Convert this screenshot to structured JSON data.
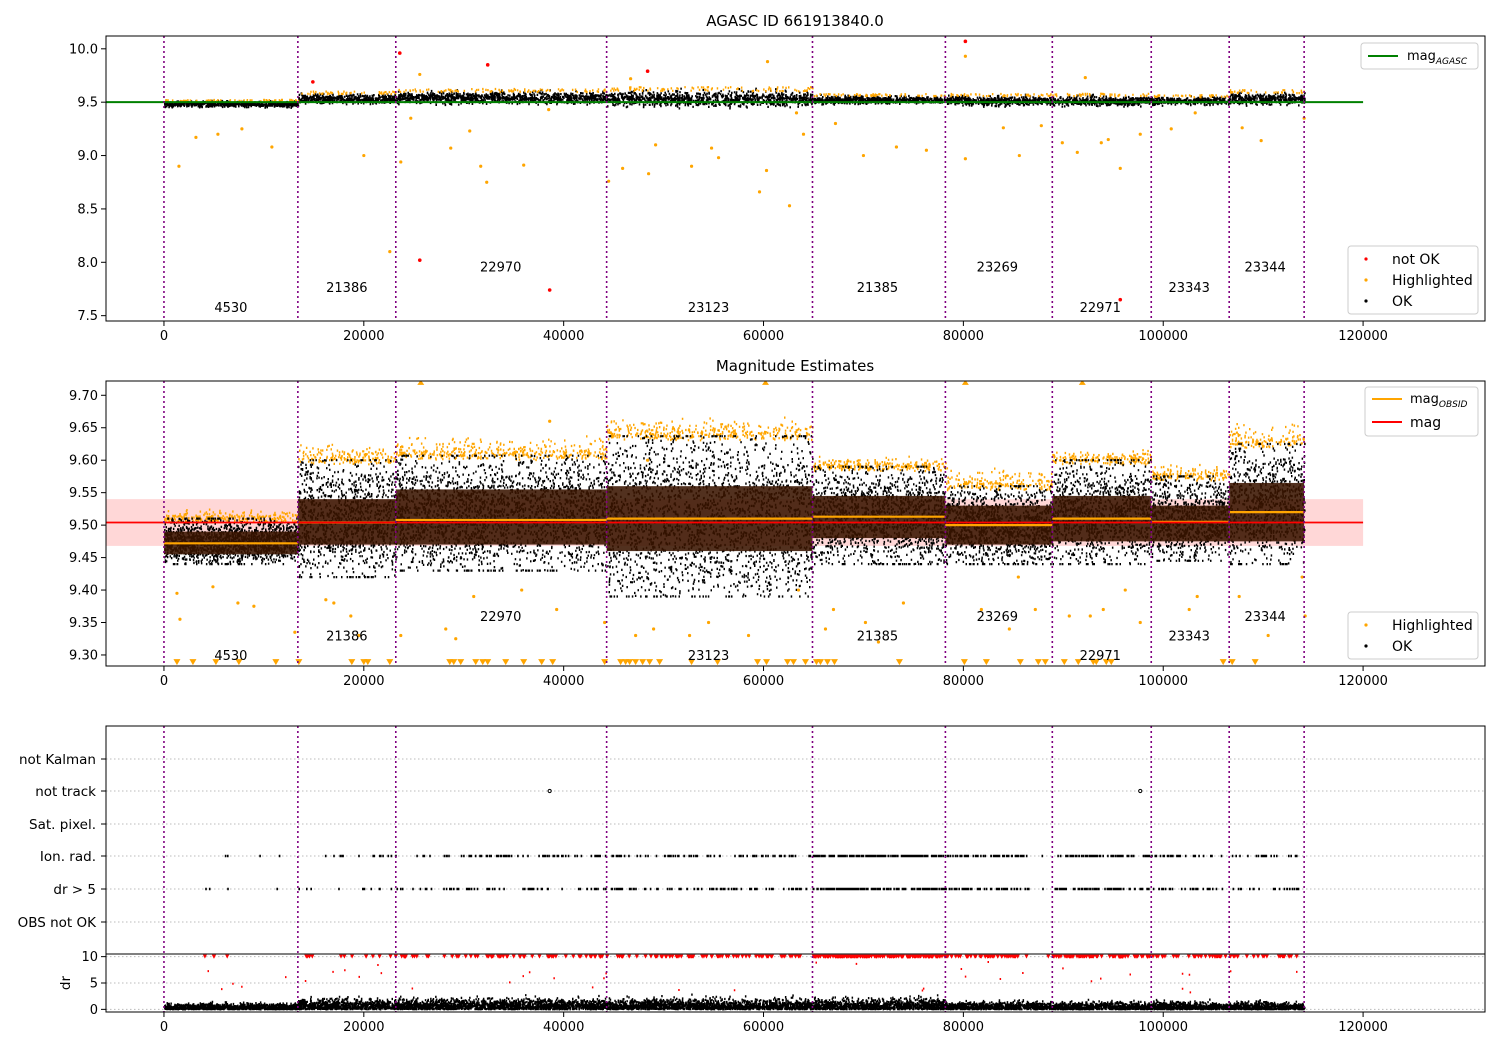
{
  "figure": {
    "title_top": "AGASC ID 661913840.0",
    "title_mid": "Magnitude Estimates"
  },
  "colors": {
    "obs_line": "#800080",
    "ok": "#000000",
    "highlighted": "#ffa500",
    "not_ok": "#ff0000",
    "mag_agasc": "#008000",
    "mag_obsid": "#ffa500",
    "mag": "#ff0000",
    "mag_band": "#ffb6b6",
    "box": "#3a1500"
  },
  "chart_data": [
    {
      "type": "scatter",
      "title": "AGASC ID 661913840.0",
      "xlim": [
        -5800,
        132200
      ],
      "ylim": [
        7.45,
        10.12
      ],
      "x_ticks": [
        0,
        20000,
        40000,
        60000,
        80000,
        100000,
        120000
      ],
      "y_ticks": [
        7.5,
        8.0,
        8.5,
        9.0,
        9.5,
        10.0
      ],
      "tick_labels_x": [
        "0",
        "20000",
        "40000",
        "60000",
        "80000",
        "100000",
        "120000"
      ],
      "tick_labels_y": [
        "7.5",
        "8.0",
        "8.5",
        "9.0",
        "9.5",
        "10.0"
      ],
      "obsid_boundaries": [
        0,
        13400,
        23200,
        44300,
        64900,
        78200,
        88900,
        98800,
        106600,
        114100
      ],
      "obsid_labels": [
        {
          "text": "4530",
          "x": 6700,
          "y": 7.58
        },
        {
          "text": "21386",
          "x": 18300,
          "y": 7.77
        },
        {
          "text": "22970",
          "x": 33700,
          "y": 7.96
        },
        {
          "text": "23123",
          "x": 54500,
          "y": 7.58
        },
        {
          "text": "21385",
          "x": 71400,
          "y": 7.77
        },
        {
          "text": "23269",
          "x": 83400,
          "y": 7.96
        },
        {
          "text": "22971",
          "x": 93700,
          "y": 7.58
        },
        {
          "text": "23343",
          "x": 102600,
          "y": 7.77
        },
        {
          "text": "23344",
          "x": 110200,
          "y": 7.96
        }
      ],
      "mag_agasc": {
        "name": "mag_AGASC",
        "value": 9.5,
        "x_range": [
          -5800,
          120000
        ]
      },
      "segments": [
        {
          "x0": 0,
          "x1": 13400,
          "mean": 9.48,
          "spread": 0.03
        },
        {
          "x0": 13400,
          "x1": 23200,
          "mean": 9.53,
          "spread": 0.05
        },
        {
          "x0": 23200,
          "x1": 44300,
          "mean": 9.54,
          "spread": 0.06
        },
        {
          "x0": 44300,
          "x1": 64900,
          "mean": 9.53,
          "spread": 0.08
        },
        {
          "x0": 64900,
          "x1": 78200,
          "mean": 9.52,
          "spread": 0.04
        },
        {
          "x0": 78200,
          "x1": 88900,
          "mean": 9.51,
          "spread": 0.05
        },
        {
          "x0": 88900,
          "x1": 98800,
          "mean": 9.51,
          "spread": 0.05
        },
        {
          "x0": 98800,
          "x1": 106600,
          "mean": 9.51,
          "spread": 0.04
        },
        {
          "x0": 106600,
          "x1": 114100,
          "mean": 9.53,
          "spread": 0.06
        }
      ],
      "not_ok_points": [
        [
          14900,
          9.69
        ],
        [
          23600,
          9.96
        ],
        [
          25600,
          8.02
        ],
        [
          32400,
          9.85
        ],
        [
          38600,
          7.74
        ],
        [
          48400,
          9.79
        ],
        [
          80200,
          10.07
        ],
        [
          95700,
          7.65
        ]
      ],
      "highlighted_points": [
        [
          1500,
          8.9
        ],
        [
          3200,
          9.17
        ],
        [
          5400,
          9.2
        ],
        [
          7800,
          9.25
        ],
        [
          10800,
          9.08
        ],
        [
          20000,
          9.0
        ],
        [
          22600,
          8.1
        ],
        [
          23700,
          8.94
        ],
        [
          24700,
          9.35
        ],
        [
          25600,
          9.76
        ],
        [
          28700,
          9.07
        ],
        [
          30600,
          9.23
        ],
        [
          31700,
          8.9
        ],
        [
          32300,
          8.75
        ],
        [
          36000,
          8.91
        ],
        [
          38500,
          9.43
        ],
        [
          44500,
          8.76
        ],
        [
          45900,
          8.88
        ],
        [
          46700,
          9.72
        ],
        [
          48500,
          8.83
        ],
        [
          49200,
          9.1
        ],
        [
          52800,
          8.9
        ],
        [
          54800,
          9.07
        ],
        [
          55500,
          8.98
        ],
        [
          59600,
          8.66
        ],
        [
          60300,
          8.86
        ],
        [
          60400,
          9.88
        ],
        [
          62600,
          8.53
        ],
        [
          63300,
          9.4
        ],
        [
          64000,
          9.2
        ],
        [
          67200,
          9.3
        ],
        [
          70000,
          9.0
        ],
        [
          73300,
          9.08
        ],
        [
          76300,
          9.05
        ],
        [
          80200,
          9.93
        ],
        [
          80200,
          8.97
        ],
        [
          84000,
          9.26
        ],
        [
          85600,
          9.0
        ],
        [
          87800,
          9.28
        ],
        [
          89900,
          9.12
        ],
        [
          91400,
          9.03
        ],
        [
          92200,
          9.73
        ],
        [
          93800,
          9.12
        ],
        [
          94500,
          9.15
        ],
        [
          95700,
          8.88
        ],
        [
          97700,
          9.2
        ],
        [
          100800,
          9.25
        ],
        [
          103200,
          9.4
        ],
        [
          107900,
          9.26
        ],
        [
          109800,
          9.14
        ],
        [
          114100,
          9.35
        ]
      ],
      "legend": {
        "series": [
          "mag_AGASC",
          "not OK",
          "Highlighted",
          "OK"
        ],
        "placement": [
          "upper right",
          "lower right"
        ]
      }
    },
    {
      "type": "scatter",
      "title": "Magnitude Estimates",
      "xlim": [
        -5800,
        132200
      ],
      "ylim": [
        9.283,
        9.722
      ],
      "x_ticks": [
        0,
        20000,
        40000,
        60000,
        80000,
        100000,
        120000
      ],
      "y_ticks": [
        9.3,
        9.35,
        9.4,
        9.45,
        9.5,
        9.55,
        9.6,
        9.65,
        9.7
      ],
      "tick_labels_x": [
        "0",
        "20000",
        "40000",
        "60000",
        "80000",
        "100000",
        "120000"
      ],
      "tick_labels_y": [
        "9.30",
        "9.35",
        "9.40",
        "9.45",
        "9.50",
        "9.55",
        "9.60",
        "9.65",
        "9.70"
      ],
      "obsid_labels": [
        {
          "text": "4530",
          "x": 6700,
          "y": 9.3
        },
        {
          "text": "21386",
          "x": 18300,
          "y": 9.33
        },
        {
          "text": "22970",
          "x": 33700,
          "y": 9.36
        },
        {
          "text": "23123",
          "x": 54500,
          "y": 9.3
        },
        {
          "text": "21385",
          "x": 71400,
          "y": 9.33
        },
        {
          "text": "23269",
          "x": 83400,
          "y": 9.36
        },
        {
          "text": "22971",
          "x": 93700,
          "y": 9.3
        },
        {
          "text": "23343",
          "x": 102600,
          "y": 9.33
        },
        {
          "text": "23344",
          "x": 110200,
          "y": 9.36
        }
      ],
      "mag": {
        "name": "mag",
        "value": 9.504,
        "band": [
          9.468,
          9.54
        ],
        "x_range": [
          -5800,
          120000
        ]
      },
      "segments": [
        {
          "x0": 0,
          "x1": 13400,
          "mag_obsid": 9.472,
          "q_low": 9.455,
          "q_high": 9.49,
          "ok_low": 9.44,
          "ok_high": 9.51,
          "hl_high": 9.525,
          "hl_low": 9.43
        },
        {
          "x0": 13400,
          "x1": 23200,
          "mag_obsid": 9.504,
          "q_low": 9.47,
          "q_high": 9.54,
          "ok_low": 9.42,
          "ok_high": 9.6,
          "hl_high": 9.625,
          "hl_low": 9.39
        },
        {
          "x0": 23200,
          "x1": 44300,
          "mag_obsid": 9.508,
          "q_low": 9.47,
          "q_high": 9.555,
          "ok_low": 9.43,
          "ok_high": 9.607,
          "hl_high": 9.64,
          "hl_low": 9.4
        },
        {
          "x0": 44300,
          "x1": 64900,
          "mag_obsid": 9.51,
          "q_low": 9.46,
          "q_high": 9.56,
          "ok_low": 9.39,
          "ok_high": 9.637,
          "hl_high": 9.668,
          "hl_low": 9.36
        },
        {
          "x0": 64900,
          "x1": 78200,
          "mag_obsid": 9.513,
          "q_low": 9.48,
          "q_high": 9.545,
          "ok_low": 9.44,
          "ok_high": 9.59,
          "hl_high": 9.605,
          "hl_low": 9.4
        },
        {
          "x0": 78200,
          "x1": 88900,
          "mag_obsid": 9.5,
          "q_low": 9.47,
          "q_high": 9.53,
          "ok_low": 9.44,
          "ok_high": 9.56,
          "hl_high": 9.59,
          "hl_low": 9.41
        },
        {
          "x0": 88900,
          "x1": 98800,
          "mag_obsid": 9.51,
          "q_low": 9.475,
          "q_high": 9.545,
          "ok_low": 9.44,
          "ok_high": 9.6,
          "hl_high": 9.615,
          "hl_low": 9.39
        },
        {
          "x0": 98800,
          "x1": 106600,
          "mag_obsid": 9.505,
          "q_low": 9.475,
          "q_high": 9.53,
          "ok_low": 9.445,
          "ok_high": 9.575,
          "hl_high": 9.595,
          "hl_low": 9.4
        },
        {
          "x0": 106600,
          "x1": 114100,
          "mag_obsid": 9.52,
          "q_low": 9.475,
          "q_high": 9.565,
          "ok_low": 9.44,
          "ok_high": 9.625,
          "hl_high": 9.66,
          "hl_low": 9.4
        }
      ],
      "highlighted_points": [
        [
          1300,
          9.395
        ],
        [
          1600,
          9.355
        ],
        [
          4900,
          9.405
        ],
        [
          7400,
          9.38
        ],
        [
          9000,
          9.375
        ],
        [
          13100,
          9.335
        ],
        [
          16200,
          9.385
        ],
        [
          17000,
          9.38
        ],
        [
          18700,
          9.36
        ],
        [
          19500,
          9.33
        ],
        [
          23700,
          9.33
        ],
        [
          25700,
          9.72
        ],
        [
          28200,
          9.34
        ],
        [
          29200,
          9.325
        ],
        [
          31000,
          9.39
        ],
        [
          35800,
          9.4
        ],
        [
          38600,
          9.66
        ],
        [
          39300,
          9.37
        ],
        [
          44100,
          9.35
        ],
        [
          47200,
          9.33
        ],
        [
          48400,
          9.6
        ],
        [
          49000,
          9.34
        ],
        [
          52600,
          9.33
        ],
        [
          54500,
          9.35
        ],
        [
          58500,
          9.33
        ],
        [
          60200,
          9.72
        ],
        [
          63500,
          9.4
        ],
        [
          66200,
          9.34
        ],
        [
          67000,
          9.37
        ],
        [
          70200,
          9.35
        ],
        [
          71500,
          9.32
        ],
        [
          74000,
          9.38
        ],
        [
          80200,
          9.72
        ],
        [
          81800,
          9.37
        ],
        [
          84600,
          9.34
        ],
        [
          85500,
          9.42
        ],
        [
          87200,
          9.37
        ],
        [
          90600,
          9.36
        ],
        [
          91900,
          9.72
        ],
        [
          92700,
          9.36
        ],
        [
          94000,
          9.37
        ],
        [
          96200,
          9.4
        ],
        [
          97700,
          9.35
        ],
        [
          102600,
          9.37
        ],
        [
          103400,
          9.39
        ],
        [
          107600,
          9.39
        ],
        [
          110500,
          9.33
        ],
        [
          113900,
          9.42
        ],
        [
          114200,
          9.36
        ]
      ],
      "out_of_range_x": [
        1300,
        2900,
        5200,
        7500,
        11200,
        13500,
        18800,
        20000,
        20400,
        22600,
        28600,
        29000,
        29700,
        31200,
        31900,
        32400,
        34200,
        36000,
        37800,
        38900,
        44100,
        45700,
        46200,
        46600,
        47200,
        47900,
        48600,
        49600,
        52800,
        55400,
        59400,
        60300,
        62400,
        63000,
        64200,
        65300,
        65700,
        66400,
        67100,
        73600,
        80100,
        82300,
        85700,
        87500,
        88200,
        90100,
        91500,
        93000,
        93300,
        94300,
        94800,
        106000,
        106900,
        109200
      ],
      "legend": {
        "series": [
          "mag_OBSID",
          "mag",
          "Highlighted",
          "OK"
        ],
        "placement": [
          "upper right",
          "lower right"
        ]
      }
    },
    {
      "type": "scatter",
      "title": "",
      "xlim": [
        -5800,
        132200
      ],
      "flag_rows": [
        "not Kalman",
        "not track",
        "Sat. pixel.",
        "Ion. rad.",
        "dr > 5",
        "OBS not OK"
      ],
      "flag_spans": [
        [
          1500,
          11500
        ],
        [
          13400,
          20000
        ],
        [
          20000,
          32000
        ],
        [
          32000,
          64900
        ],
        [
          64900,
          78200
        ],
        [
          78200,
          86500
        ],
        [
          86500,
          89000
        ],
        [
          89000,
          98800
        ],
        [
          98800,
          106600
        ],
        [
          106600,
          113500
        ]
      ],
      "flag_densities": [
        0.00035,
        0.0011,
        0.0022,
        0.0035,
        0.012,
        0.006,
        0.0004,
        0.007,
        0.0035,
        0.003
      ],
      "not_track_points": [
        38600,
        97700
      ],
      "dr": {
        "ylim": [
          -0.5,
          10.5
        ],
        "y_ticks": [
          0,
          5,
          10
        ],
        "tick_labels_y": [
          "0",
          "5",
          "10"
        ],
        "ylabel": "dr"
      },
      "dr_spread": [
        0.9,
        1.6,
        1.6,
        1.6,
        1.6,
        1.1,
        1.1,
        1.1,
        1.1
      ]
    }
  ]
}
